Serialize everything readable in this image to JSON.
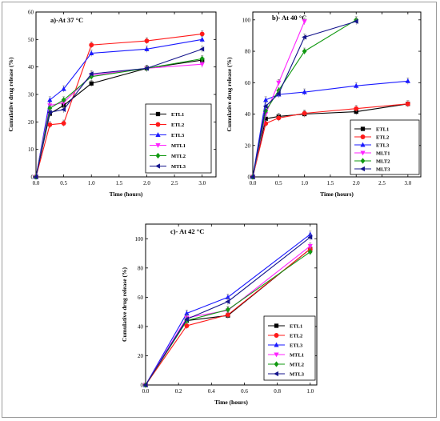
{
  "colors": {
    "ETL1": "#000000",
    "ETL2": "#ff1a1a",
    "ETL3": "#1a1aff",
    "MTL1": "#ff22ff",
    "MTL2": "#119911",
    "MTL3": "#14148c"
  },
  "chart_data": [
    {
      "type": "line",
      "title": "a)-At 37 °C",
      "xlabel": "Time (hours)",
      "ylabel": "Cumulative drug release (%)",
      "xlim": [
        0,
        3.25
      ],
      "ylim": [
        0,
        60
      ],
      "xticks": [
        "0.0",
        "0.5",
        "1.0",
        "1.5",
        "2.0",
        "2.5",
        "3.0"
      ],
      "yticks": [
        "0",
        "10",
        "20",
        "30",
        "40",
        "50",
        "60"
      ],
      "legend_position": "lower-right",
      "series": [
        {
          "name": "ETL1",
          "marker": "square",
          "x": [
            0,
            0.25,
            0.5,
            1.0,
            2.0,
            3.0
          ],
          "y": [
            0,
            23,
            26,
            34,
            39.5,
            42.5
          ]
        },
        {
          "name": "ETL2",
          "marker": "circle",
          "x": [
            0,
            0.25,
            0.5,
            1.0,
            2.0,
            3.0
          ],
          "y": [
            0,
            19,
            19.5,
            48,
            49.5,
            52
          ]
        },
        {
          "name": "ETL3",
          "marker": "triangle-up",
          "x": [
            0,
            0.25,
            0.5,
            1.0,
            2.0,
            3.0
          ],
          "y": [
            0,
            28,
            32,
            45,
            46.5,
            50
          ]
        },
        {
          "name": "MTL1",
          "marker": "triangle-down",
          "x": [
            0,
            0.25,
            0.5,
            1.0,
            2.0,
            3.0
          ],
          "y": [
            0,
            26,
            27,
            37,
            39.5,
            41
          ]
        },
        {
          "name": "MTL2",
          "marker": "diamond",
          "x": [
            0,
            0.25,
            0.5,
            1.0,
            2.0,
            3.0
          ],
          "y": [
            0,
            25,
            28,
            36.5,
            39.5,
            43
          ]
        },
        {
          "name": "MTL3",
          "marker": "triangle-left",
          "x": [
            0,
            0.25,
            0.5,
            1.0,
            2.0,
            3.0
          ],
          "y": [
            0,
            23.5,
            24.5,
            37.5,
            39.5,
            46.5
          ]
        }
      ]
    },
    {
      "type": "line",
      "title": "b)- At 40 °C",
      "xlabel": "Time (hours)",
      "ylabel": "Cumulative drug release (%)",
      "xlim": [
        0,
        3.25
      ],
      "ylim": [
        0,
        105
      ],
      "xticks": [
        "0.0",
        "0.5",
        "1.0",
        "1.5",
        "2.0",
        "2.5",
        "3.0"
      ],
      "yticks": [
        "0",
        "20",
        "40",
        "60",
        "80",
        "100"
      ],
      "legend_position": "lower-right",
      "series": [
        {
          "name": "ETL1",
          "marker": "square",
          "x": [
            0,
            0.25,
            0.5,
            1.0,
            2.0,
            3.0
          ],
          "y": [
            0,
            37,
            38.5,
            40,
            41.5,
            46.5
          ]
        },
        {
          "name": "ETL2",
          "marker": "circle",
          "x": [
            0,
            0.25,
            0.5,
            1.0,
            2.0,
            3.0
          ],
          "y": [
            0,
            34,
            37.5,
            40.5,
            43.5,
            46.5
          ]
        },
        {
          "name": "ETL3",
          "marker": "triangle-up",
          "x": [
            0,
            0.25,
            0.5,
            1.0,
            2.0,
            3.0
          ],
          "y": [
            0,
            49,
            52.5,
            54,
            58,
            61
          ]
        },
        {
          "name": "MLT1",
          "marker": "triangle-down",
          "x": [
            0,
            0.25,
            0.5,
            1.0
          ],
          "y": [
            0,
            40,
            60,
            99
          ]
        },
        {
          "name": "MLT2",
          "marker": "diamond",
          "x": [
            0,
            0.25,
            0.5,
            1.0,
            2.0
          ],
          "y": [
            0,
            42,
            55,
            80,
            100
          ]
        },
        {
          "name": "MLT3",
          "marker": "triangle-left",
          "x": [
            0,
            0.25,
            0.5,
            1.0,
            2.0
          ],
          "y": [
            0,
            45,
            53,
            89,
            99
          ]
        }
      ]
    },
    {
      "type": "line",
      "title": "c)- At 42 °C",
      "xlabel": "Time (hours)",
      "ylabel": "Cumulative drug release (%)",
      "xlim": [
        0,
        1.04
      ],
      "ylim": [
        0,
        110
      ],
      "xticks": [
        "0.0",
        "0.2",
        "0.4",
        "0.6",
        "0.8",
        "1.0"
      ],
      "yticks": [
        "0",
        "20",
        "40",
        "60",
        "80",
        "100"
      ],
      "legend_position": "lower-right",
      "series": [
        {
          "name": "ETL1",
          "marker": "square",
          "x": [
            0,
            0.25,
            0.5,
            1.0
          ],
          "y": [
            0,
            44,
            47.5,
            93
          ]
        },
        {
          "name": "ETL2",
          "marker": "circle",
          "x": [
            0,
            0.25,
            0.5,
            1.0
          ],
          "y": [
            0,
            40.5,
            48,
            93
          ]
        },
        {
          "name": "ETL3",
          "marker": "triangle-up",
          "x": [
            0,
            0.25,
            0.5,
            1.0
          ],
          "y": [
            0,
            49,
            60,
            103
          ]
        },
        {
          "name": "MTL1",
          "marker": "triangle-down",
          "x": [
            0,
            0.25,
            0.5,
            1.0
          ],
          "y": [
            0,
            46,
            51,
            95
          ]
        },
        {
          "name": "MTL2",
          "marker": "diamond",
          "x": [
            0,
            0.25,
            0.5,
            1.0
          ],
          "y": [
            0,
            44,
            51.5,
            91
          ]
        },
        {
          "name": "MTL3",
          "marker": "triangle-left",
          "x": [
            0,
            0.25,
            0.5,
            1.0
          ],
          "y": [
            0,
            45,
            57,
            101
          ]
        }
      ]
    }
  ]
}
